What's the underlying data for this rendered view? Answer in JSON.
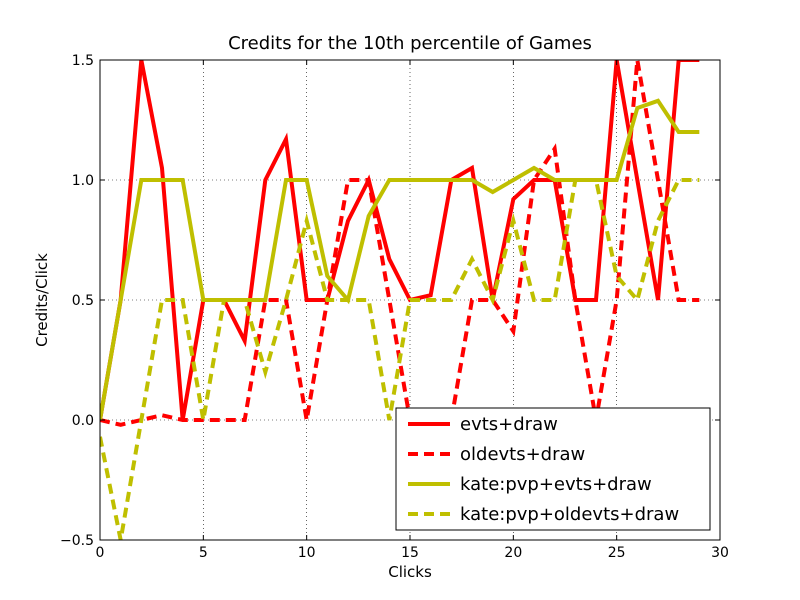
{
  "chart_data": {
    "type": "line",
    "title": "Credits for the 10th percentile of Games",
    "xlabel": "Clicks",
    "ylabel": "Credits/Click",
    "xlim": [
      0,
      30
    ],
    "ylim": [
      -0.5,
      1.5
    ],
    "xticks": [
      0,
      5,
      10,
      15,
      20,
      25,
      30
    ],
    "yticks": [
      -0.5,
      0.0,
      0.5,
      1.0,
      1.5
    ],
    "xtick_labels": [
      "0",
      "5",
      "10",
      "15",
      "20",
      "25",
      "30"
    ],
    "ytick_labels": [
      "−0.5",
      "0.0",
      "0.5",
      "1.0",
      "1.5"
    ],
    "grid": true,
    "legend_position": "lower-right",
    "series": [
      {
        "name": "evts+draw",
        "color": "#ff0000",
        "style": "solid",
        "x": [
          0,
          1,
          2,
          3,
          4,
          5,
          6,
          7,
          8,
          9,
          10,
          11,
          12,
          13,
          14,
          15,
          16,
          17,
          18,
          19,
          20,
          21,
          22,
          23,
          24,
          25,
          26,
          27,
          28,
          29
        ],
        "y": [
          0.0,
          0.5,
          1.5,
          1.05,
          0.0,
          0.5,
          0.5,
          0.33,
          1.0,
          1.17,
          0.5,
          0.5,
          0.83,
          1.0,
          0.67,
          0.5,
          0.52,
          1.0,
          1.05,
          0.5,
          0.92,
          1.0,
          1.0,
          0.5,
          0.5,
          1.5,
          1.0,
          0.5,
          1.5,
          1.5
        ]
      },
      {
        "name": "oldevts+draw",
        "color": "#ff0000",
        "style": "dashed",
        "x": [
          0,
          1,
          2,
          3,
          4,
          5,
          6,
          7,
          8,
          9,
          10,
          11,
          12,
          13,
          14,
          15,
          16,
          17,
          18,
          19,
          20,
          21,
          22,
          23,
          24,
          25,
          26,
          27,
          28,
          29
        ],
        "y": [
          0.0,
          -0.02,
          0.0,
          0.02,
          0.0,
          0.0,
          0.0,
          0.0,
          0.5,
          0.5,
          0.0,
          0.5,
          1.0,
          1.0,
          0.5,
          0.0,
          0.0,
          0.0,
          0.5,
          0.5,
          0.37,
          1.0,
          1.13,
          0.5,
          0.0,
          0.5,
          1.5,
          1.0,
          0.5,
          0.5
        ]
      },
      {
        "name": "kate:pvp+evts+draw",
        "color": "#bfbf00",
        "style": "solid",
        "x": [
          0,
          1,
          2,
          3,
          4,
          5,
          6,
          7,
          8,
          9,
          10,
          11,
          12,
          13,
          14,
          15,
          16,
          17,
          18,
          19,
          20,
          21,
          22,
          23,
          24,
          25,
          26,
          27,
          28,
          29
        ],
        "y": [
          0.0,
          0.5,
          1.0,
          1.0,
          1.0,
          0.5,
          0.5,
          0.5,
          0.5,
          1.0,
          1.0,
          0.6,
          0.5,
          0.85,
          1.0,
          1.0,
          1.0,
          1.0,
          1.0,
          0.95,
          1.0,
          1.05,
          1.0,
          1.0,
          1.0,
          1.0,
          1.3,
          1.33,
          1.2,
          1.2
        ]
      },
      {
        "name": "kate:pvp+oldevts+draw",
        "color": "#bfbf00",
        "style": "dashed",
        "x": [
          0,
          1,
          2,
          3,
          4,
          5,
          6,
          7,
          8,
          9,
          10,
          11,
          12,
          13,
          14,
          15,
          16,
          17,
          18,
          19,
          20,
          21,
          22,
          23,
          24,
          25,
          26,
          27,
          28,
          29
        ],
        "y": [
          -0.07,
          -0.5,
          0.0,
          0.5,
          0.5,
          0.0,
          0.5,
          0.5,
          0.2,
          0.5,
          0.83,
          0.5,
          0.5,
          0.5,
          0.0,
          0.5,
          0.5,
          0.5,
          0.67,
          0.5,
          0.83,
          0.5,
          0.5,
          1.0,
          1.0,
          0.6,
          0.5,
          0.83,
          1.0,
          1.0
        ]
      }
    ]
  }
}
